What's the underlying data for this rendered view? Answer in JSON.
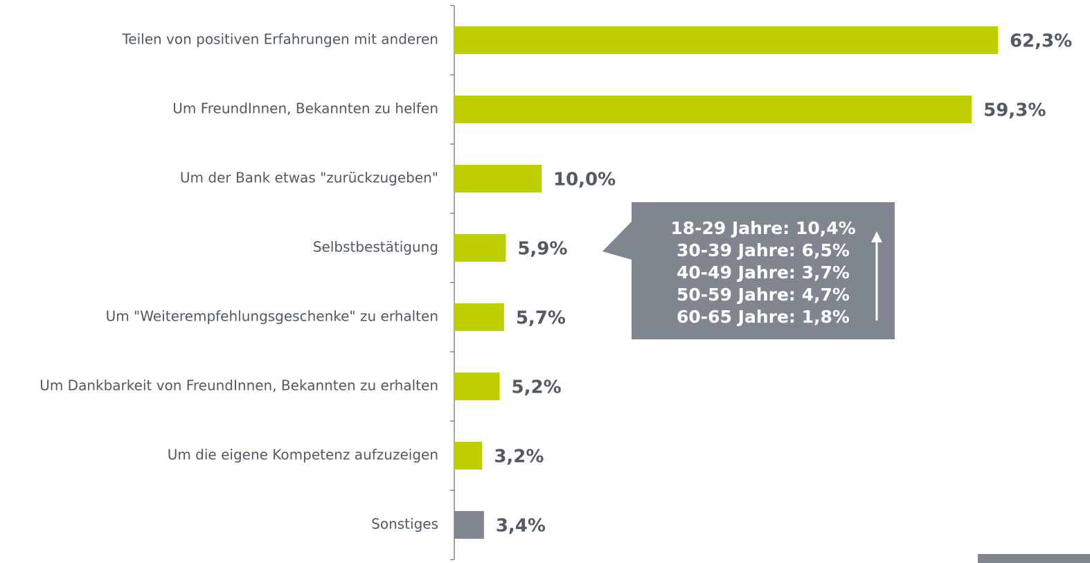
{
  "chart_data": {
    "type": "bar",
    "orientation": "horizontal",
    "categories": [
      "Teilen von positiven Erfahrungen mit anderen",
      "Um FreundInnen, Bekannten zu helfen",
      "Um der Bank etwas \"zurückzugeben\"",
      "Selbstbestätigung",
      "Um \"Weiterempfehlungsgeschenke\" zu erhalten",
      "Um Dankbarkeit von FreundInnen, Bekannten zu erhalten",
      "Um die eigene Kompetenz aufzuzeigen",
      "Sonstiges"
    ],
    "values": [
      62.3,
      59.3,
      10.0,
      5.9,
      5.7,
      5.2,
      3.2,
      3.4
    ],
    "value_labels": [
      "62,3%",
      "59,3%",
      "10,0%",
      "5,9%",
      "5,7%",
      "5,2%",
      "3,2%",
      "3,4%"
    ],
    "colors": [
      "#bfce00",
      "#bfce00",
      "#bfce00",
      "#bfce00",
      "#bfce00",
      "#bfce00",
      "#bfce00",
      "#80868f"
    ],
    "xlim": [
      0,
      70
    ],
    "annotation": {
      "lines": [
        "18-29 Jahre: 10,4%",
        "30-39 Jahre: 6,5%",
        "40-49 Jahre: 3,7%",
        "50-59 Jahre: 4,7%",
        "60-65 Jahre: 1,8%"
      ],
      "color": "#80868f"
    }
  }
}
